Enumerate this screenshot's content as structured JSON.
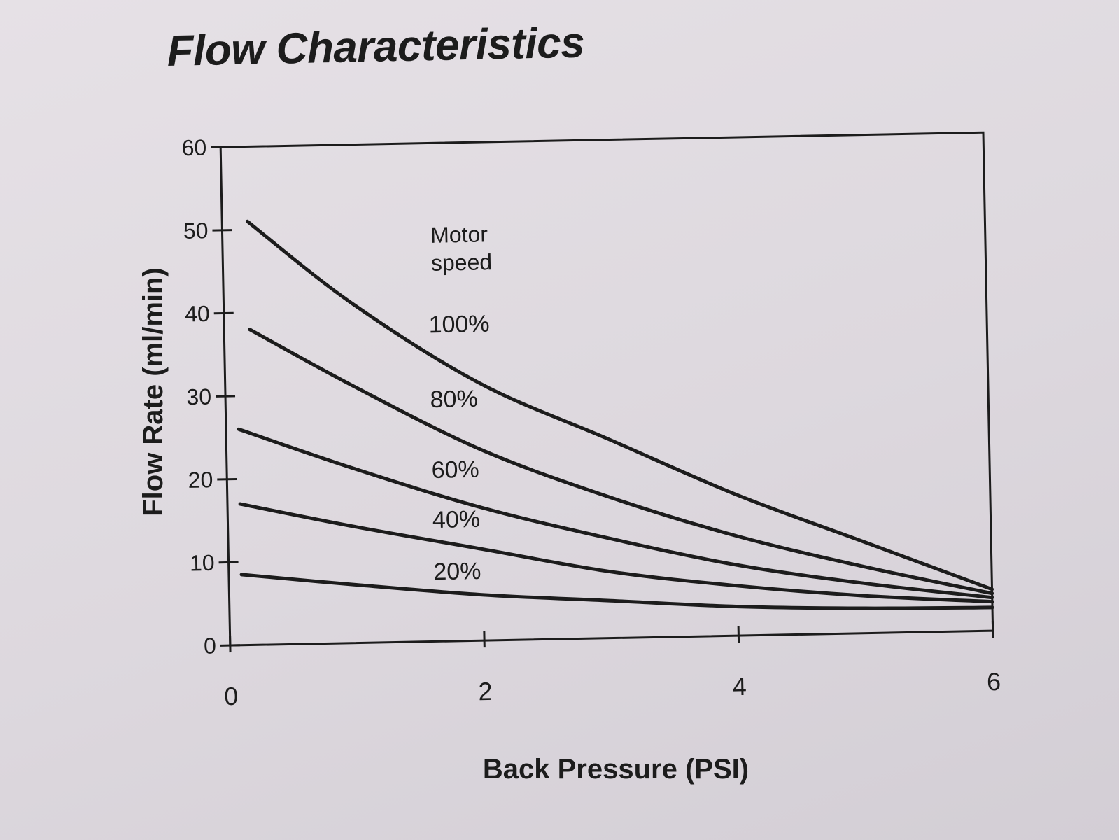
{
  "chart_data": {
    "type": "line",
    "title": "Flow Characteristics",
    "xlabel": "Back Pressure (PSI)",
    "ylabel": "Flow Rate (ml/min)",
    "xlim": [
      0,
      6
    ],
    "ylim": [
      0,
      60
    ],
    "x_ticks": [
      "0",
      "2",
      "4",
      "6"
    ],
    "y_ticks": [
      "0",
      "10",
      "20",
      "30",
      "40",
      "50",
      "60"
    ],
    "grid": false,
    "legend_title_lines": [
      "Motor",
      "speed"
    ],
    "series": [
      {
        "name": "100%",
        "x": [
          0.2,
          1,
          2,
          3,
          4,
          5,
          6
        ],
        "y": [
          51,
          41,
          31,
          24,
          17,
          11,
          5
        ]
      },
      {
        "name": "80%",
        "x": [
          0.2,
          1,
          2,
          3,
          4,
          5,
          6
        ],
        "y": [
          38,
          31,
          23,
          17,
          12,
          8,
          4.5
        ]
      },
      {
        "name": "60%",
        "x": [
          0.1,
          1,
          2,
          3,
          4,
          5,
          6
        ],
        "y": [
          26,
          21,
          16,
          12,
          8.5,
          6,
          4
        ]
      },
      {
        "name": "40%",
        "x": [
          0.1,
          1,
          2,
          3,
          4,
          5,
          6
        ],
        "y": [
          17,
          14,
          11,
          8,
          6,
          4.5,
          3.5
        ]
      },
      {
        "name": "20%",
        "x": [
          0.1,
          1,
          2,
          3,
          4,
          5,
          6
        ],
        "y": [
          8.5,
          7,
          5.5,
          4.5,
          3.5,
          3,
          2.8
        ]
      }
    ]
  }
}
